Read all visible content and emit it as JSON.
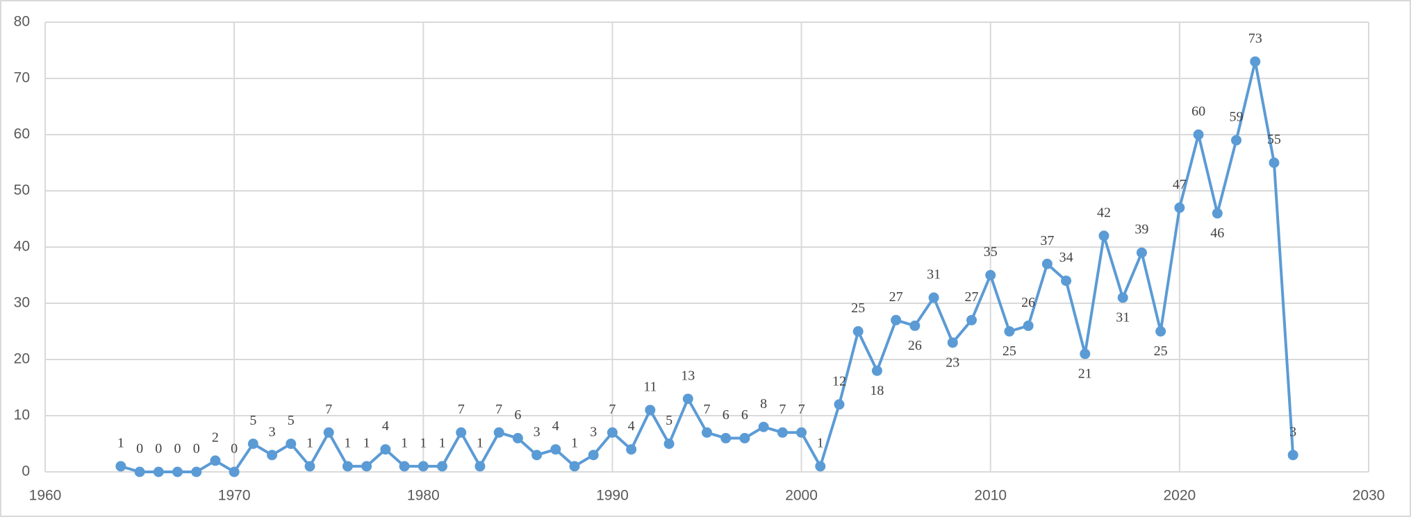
{
  "chart_data": {
    "type": "line",
    "x": [
      1964,
      1965,
      1966,
      1967,
      1968,
      1969,
      1970,
      1971,
      1972,
      1973,
      1974,
      1975,
      1976,
      1977,
      1978,
      1979,
      1980,
      1981,
      1982,
      1983,
      1984,
      1985,
      1986,
      1987,
      1988,
      1989,
      1990,
      1991,
      1992,
      1993,
      1994,
      1995,
      1996,
      1997,
      1998,
      1999,
      2000,
      2001,
      2002,
      2003,
      2004,
      2005,
      2006,
      2007,
      2008,
      2009,
      2010,
      2011,
      2012,
      2013,
      2014,
      2015,
      2016,
      2017,
      2018,
      2019,
      2020,
      2021,
      2022,
      2023,
      2024,
      2025,
      2026
    ],
    "series": [
      {
        "color": "#5b9bd5",
        "values": [
          1,
          0,
          0,
          0,
          0,
          2,
          0,
          5,
          3,
          5,
          1,
          7,
          1,
          1,
          4,
          1,
          1,
          1,
          7,
          1,
          7,
          6,
          3,
          4,
          1,
          3,
          7,
          4,
          11,
          5,
          13,
          7,
          6,
          6,
          8,
          7,
          7,
          1,
          12,
          25,
          18,
          27,
          26,
          31,
          23,
          27,
          35,
          25,
          26,
          37,
          34,
          21,
          42,
          31,
          39,
          25,
          47,
          60,
          46,
          59,
          73,
          55,
          3
        ]
      }
    ],
    "xlim": [
      1960,
      2030
    ],
    "xticks": [
      1960,
      1970,
      1980,
      1990,
      2000,
      2010,
      2020,
      2030
    ],
    "ylim": [
      0,
      80
    ],
    "yticks": [
      0,
      10,
      20,
      30,
      40,
      50,
      60,
      70,
      80
    ],
    "grid": true,
    "data_labels": true
  }
}
